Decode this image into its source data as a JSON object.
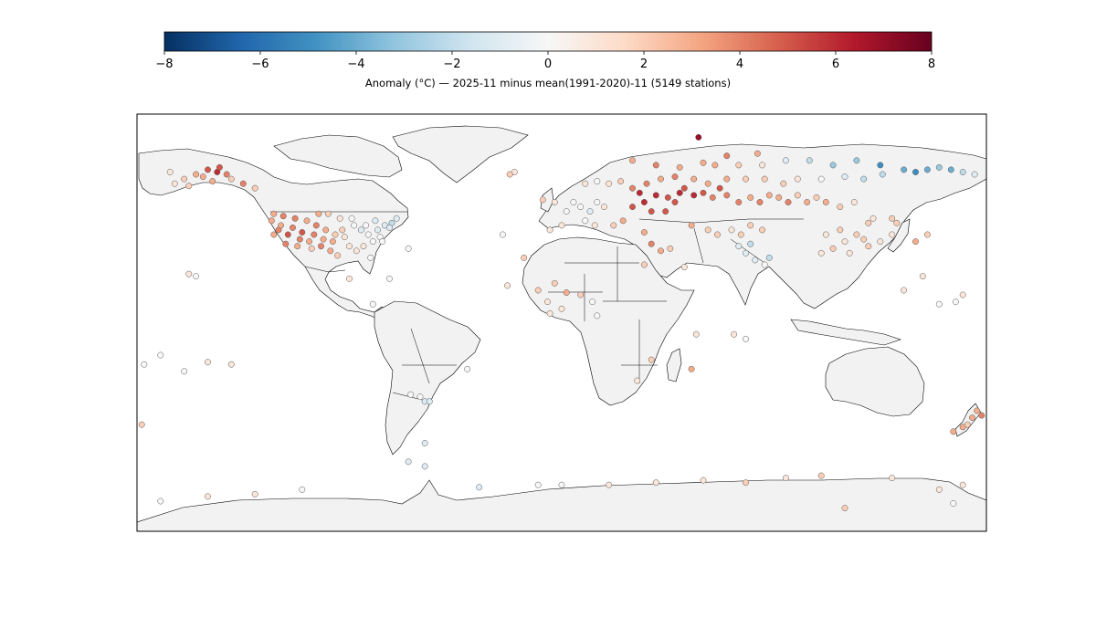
{
  "colorbar": {
    "label": "Anomaly (°C) — 2025-11 minus mean(1991-2020)-11 (5149 stations)",
    "vmin": -8,
    "vmax": 8,
    "ticks": [
      "−8",
      "−6",
      "−4",
      "−2",
      "0",
      "2",
      "4",
      "6",
      "8"
    ],
    "colormap": "RdBu_r",
    "colormap_stops": [
      "#053061",
      "#2166ac",
      "#4393c3",
      "#92c5de",
      "#d1e5f0",
      "#f7f7f7",
      "#fddbc7",
      "#f4a582",
      "#d6604d",
      "#b2182b",
      "#67001f"
    ]
  },
  "map": {
    "projection": "PlateCarree",
    "extent": [
      -180,
      180,
      -90,
      90
    ],
    "land_color": "#f2f2f2",
    "stations": [
      [
        -155,
        64,
        3
      ],
      [
        -150,
        66,
        5
      ],
      [
        -146,
        65,
        6
      ],
      [
        -142,
        64,
        4
      ],
      [
        -148,
        61,
        3
      ],
      [
        -160,
        62,
        2
      ],
      [
        -135,
        60,
        4
      ],
      [
        -130,
        58,
        2
      ],
      [
        -164,
        60,
        1
      ],
      [
        -158,
        59,
        2
      ],
      [
        -145,
        67,
        5
      ],
      [
        -152,
        63,
        3
      ],
      [
        -140,
        62,
        2
      ],
      [
        -166,
        65,
        1
      ],
      [
        -122,
        47,
        3
      ],
      [
        -118,
        46,
        4
      ],
      [
        -113,
        45,
        4
      ],
      [
        -108,
        44,
        3
      ],
      [
        -104,
        42,
        4
      ],
      [
        -100,
        40,
        3
      ],
      [
        -96,
        38,
        2
      ],
      [
        -92,
        37,
        1
      ],
      [
        -120,
        40,
        4
      ],
      [
        -116,
        38,
        5
      ],
      [
        -111,
        36,
        4
      ],
      [
        -107,
        35,
        3
      ],
      [
        -102,
        33,
        4
      ],
      [
        -98,
        31,
        3
      ],
      [
        -95,
        29,
        2
      ],
      [
        -90,
        33,
        1
      ],
      [
        -123,
        44,
        3
      ],
      [
        -119,
        42,
        3
      ],
      [
        -114,
        41,
        4
      ],
      [
        -110,
        39,
        5
      ],
      [
        -105,
        38,
        4
      ],
      [
        -101,
        36,
        3
      ],
      [
        -97,
        35,
        3
      ],
      [
        -93,
        40,
        2
      ],
      [
        -88,
        42,
        0
      ],
      [
        -85,
        40,
        -1
      ],
      [
        -82,
        38,
        0
      ],
      [
        -78,
        40,
        -1
      ],
      [
        -75,
        42,
        -1
      ],
      [
        -72,
        43,
        -2
      ],
      [
        -70,
        45,
        -1
      ],
      [
        -80,
        35,
        0
      ],
      [
        -84,
        33,
        1
      ],
      [
        -87,
        31,
        1
      ],
      [
        -81,
        28,
        0
      ],
      [
        -89,
        45,
        0
      ],
      [
        -94,
        45,
        1
      ],
      [
        -99,
        47,
        2
      ],
      [
        -103,
        47,
        3
      ],
      [
        -117,
        34,
        4
      ],
      [
        -122,
        38,
        3
      ],
      [
        -112,
        33,
        3
      ],
      [
        -106,
        32,
        2
      ],
      [
        -77,
        37,
        0
      ],
      [
        -76,
        35,
        0
      ],
      [
        -73,
        41,
        -1
      ],
      [
        -79,
        44,
        -1
      ],
      [
        -83,
        42,
        0
      ],
      [
        -158,
        21,
        1
      ],
      [
        -155,
        20,
        0
      ],
      [
        -90,
        19,
        1
      ],
      [
        -80,
        8,
        0
      ],
      [
        -73,
        19,
        0
      ],
      [
        -58,
        -34,
        -1
      ],
      [
        -60,
        -32,
        0
      ],
      [
        -56,
        -34,
        -1
      ],
      [
        -64,
        -31,
        0
      ],
      [
        -58,
        -52,
        -1
      ],
      [
        -40,
        -20,
        0
      ],
      [
        -20,
        65,
        1
      ],
      [
        -22,
        64,
        2
      ],
      [
        10,
        60,
        1
      ],
      [
        15,
        61,
        0
      ],
      [
        20,
        60,
        1
      ],
      [
        25,
        61,
        2
      ],
      [
        5,
        52,
        0
      ],
      [
        8,
        50,
        0
      ],
      [
        12,
        48,
        -1
      ],
      [
        15,
        52,
        0
      ],
      [
        18,
        50,
        1
      ],
      [
        2,
        48,
        0
      ],
      [
        -3,
        52,
        1
      ],
      [
        -8,
        53,
        2
      ],
      [
        -5,
        40,
        1
      ],
      [
        0,
        42,
        1
      ],
      [
        10,
        44,
        0
      ],
      [
        14,
        42,
        1
      ],
      [
        22,
        42,
        2
      ],
      [
        26,
        44,
        3
      ],
      [
        30,
        50,
        5
      ],
      [
        35,
        52,
        6
      ],
      [
        40,
        55,
        6
      ],
      [
        45,
        54,
        5
      ],
      [
        50,
        56,
        6
      ],
      [
        38,
        48,
        5
      ],
      [
        44,
        48,
        5
      ],
      [
        33,
        56,
        6
      ],
      [
        48,
        52,
        5
      ],
      [
        52,
        58,
        5
      ],
      [
        56,
        55,
        6
      ],
      [
        60,
        56,
        5
      ],
      [
        64,
        54,
        4
      ],
      [
        67,
        58,
        5
      ],
      [
        30,
        58,
        4
      ],
      [
        36,
        60,
        4
      ],
      [
        42,
        62,
        3
      ],
      [
        48,
        63,
        4
      ],
      [
        56,
        62,
        3
      ],
      [
        62,
        60,
        3
      ],
      [
        70,
        55,
        4
      ],
      [
        75,
        52,
        4
      ],
      [
        80,
        54,
        3
      ],
      [
        84,
        52,
        4
      ],
      [
        88,
        55,
        3
      ],
      [
        92,
        54,
        3
      ],
      [
        96,
        52,
        4
      ],
      [
        100,
        55,
        2
      ],
      [
        104,
        52,
        3
      ],
      [
        108,
        54,
        2
      ],
      [
        112,
        52,
        3
      ],
      [
        118,
        50,
        2
      ],
      [
        124,
        52,
        1
      ],
      [
        70,
        62,
        3
      ],
      [
        78,
        62,
        2
      ],
      [
        86,
        62,
        2
      ],
      [
        94,
        60,
        2
      ],
      [
        100,
        62,
        1
      ],
      [
        110,
        62,
        0
      ],
      [
        120,
        63,
        -1
      ],
      [
        128,
        62,
        -2
      ],
      [
        136,
        64,
        -2
      ],
      [
        145,
        66,
        -4
      ],
      [
        150,
        65,
        -5
      ],
      [
        155,
        66,
        -4
      ],
      [
        160,
        67,
        -3
      ],
      [
        165,
        66,
        -4
      ],
      [
        170,
        65,
        -2
      ],
      [
        175,
        64,
        -1
      ],
      [
        135,
        68,
        -5
      ],
      [
        125,
        70,
        -3
      ],
      [
        115,
        68,
        -3
      ],
      [
        105,
        70,
        -2
      ],
      [
        95,
        70,
        -1
      ],
      [
        85,
        68,
        1
      ],
      [
        75,
        68,
        2
      ],
      [
        65,
        68,
        3
      ],
      [
        58,
        80,
        7
      ],
      [
        70,
        72,
        4
      ],
      [
        83,
        73,
        3
      ],
      [
        30,
        70,
        3
      ],
      [
        40,
        68,
        4
      ],
      [
        50,
        67,
        3
      ],
      [
        60,
        69,
        3
      ],
      [
        72,
        40,
        1
      ],
      [
        76,
        38,
        2
      ],
      [
        80,
        42,
        2
      ],
      [
        85,
        40,
        2
      ],
      [
        66,
        38,
        2
      ],
      [
        62,
        40,
        2
      ],
      [
        55,
        42,
        3
      ],
      [
        78,
        30,
        -1
      ],
      [
        82,
        27,
        -1
      ],
      [
        86,
        25,
        0
      ],
      [
        88,
        28,
        -2
      ],
      [
        75,
        33,
        -1
      ],
      [
        80,
        34,
        -2
      ],
      [
        110,
        30,
        1
      ],
      [
        115,
        32,
        2
      ],
      [
        120,
        35,
        1
      ],
      [
        125,
        38,
        2
      ],
      [
        128,
        36,
        2
      ],
      [
        130,
        33,
        2
      ],
      [
        135,
        35,
        1
      ],
      [
        140,
        38,
        1
      ],
      [
        142,
        43,
        2
      ],
      [
        132,
        45,
        1
      ],
      [
        130,
        43,
        2
      ],
      [
        140,
        45,
        2
      ],
      [
        118,
        40,
        2
      ],
      [
        112,
        38,
        1
      ],
      [
        122,
        30,
        1
      ],
      [
        150,
        35,
        3
      ],
      [
        155,
        38,
        2
      ],
      [
        145,
        14,
        1
      ],
      [
        153,
        20,
        1
      ],
      [
        160,
        8,
        0
      ],
      [
        167,
        9,
        0
      ],
      [
        170,
        12,
        1
      ],
      [
        -3,
        17,
        2
      ],
      [
        -10,
        14,
        2
      ],
      [
        2,
        13,
        3
      ],
      [
        8,
        12,
        2
      ],
      [
        -6,
        9,
        1
      ],
      [
        13,
        9,
        0
      ],
      [
        0,
        6,
        1
      ],
      [
        -5,
        4,
        1
      ],
      [
        15,
        3,
        0
      ],
      [
        38,
        34,
        4
      ],
      [
        42,
        31,
        3
      ],
      [
        46,
        32,
        2
      ],
      [
        35,
        25,
        2
      ],
      [
        52,
        24,
        1
      ],
      [
        35,
        39,
        3
      ],
      [
        32,
        -25,
        1
      ],
      [
        38,
        -16,
        2
      ],
      [
        55,
        -20,
        3
      ],
      [
        57,
        -5,
        1
      ],
      [
        73,
        -5,
        1
      ],
      [
        78,
        -7,
        0
      ],
      [
        -23,
        16,
        1
      ],
      [
        -16,
        28,
        2
      ],
      [
        -25,
        38,
        0
      ],
      [
        -65,
        32,
        0
      ],
      [
        170,
        -45,
        3
      ],
      [
        174,
        -41,
        3
      ],
      [
        176,
        -38,
        3
      ],
      [
        178,
        -40,
        4
      ],
      [
        172,
        -44,
        2
      ],
      [
        166,
        -47,
        3
      ],
      [
        -178,
        -44,
        2
      ],
      [
        -140,
        -18,
        1
      ],
      [
        -150,
        -17,
        1
      ],
      [
        -160,
        -21,
        0
      ],
      [
        -170,
        -14,
        0
      ],
      [
        -177,
        -18,
        0
      ],
      [
        -65,
        -60,
        -1
      ],
      [
        -58,
        -62,
        -1
      ],
      [
        -35,
        -71,
        -1
      ],
      [
        -10,
        -70,
        0
      ],
      [
        0,
        -70,
        0
      ],
      [
        20,
        -70,
        1
      ],
      [
        40,
        -69,
        1
      ],
      [
        60,
        -68,
        1
      ],
      [
        78,
        -69,
        2
      ],
      [
        95,
        -67,
        1
      ],
      [
        110,
        -66,
        2
      ],
      [
        140,
        -67,
        1
      ],
      [
        160,
        -72,
        1
      ],
      [
        166,
        -78,
        0
      ],
      [
        -110,
        -72,
        0
      ],
      [
        -130,
        -74,
        1
      ],
      [
        -150,
        -75,
        1
      ],
      [
        -170,
        -77,
        0
      ],
      [
        120,
        -80,
        2
      ],
      [
        170,
        -70,
        1
      ]
    ]
  }
}
